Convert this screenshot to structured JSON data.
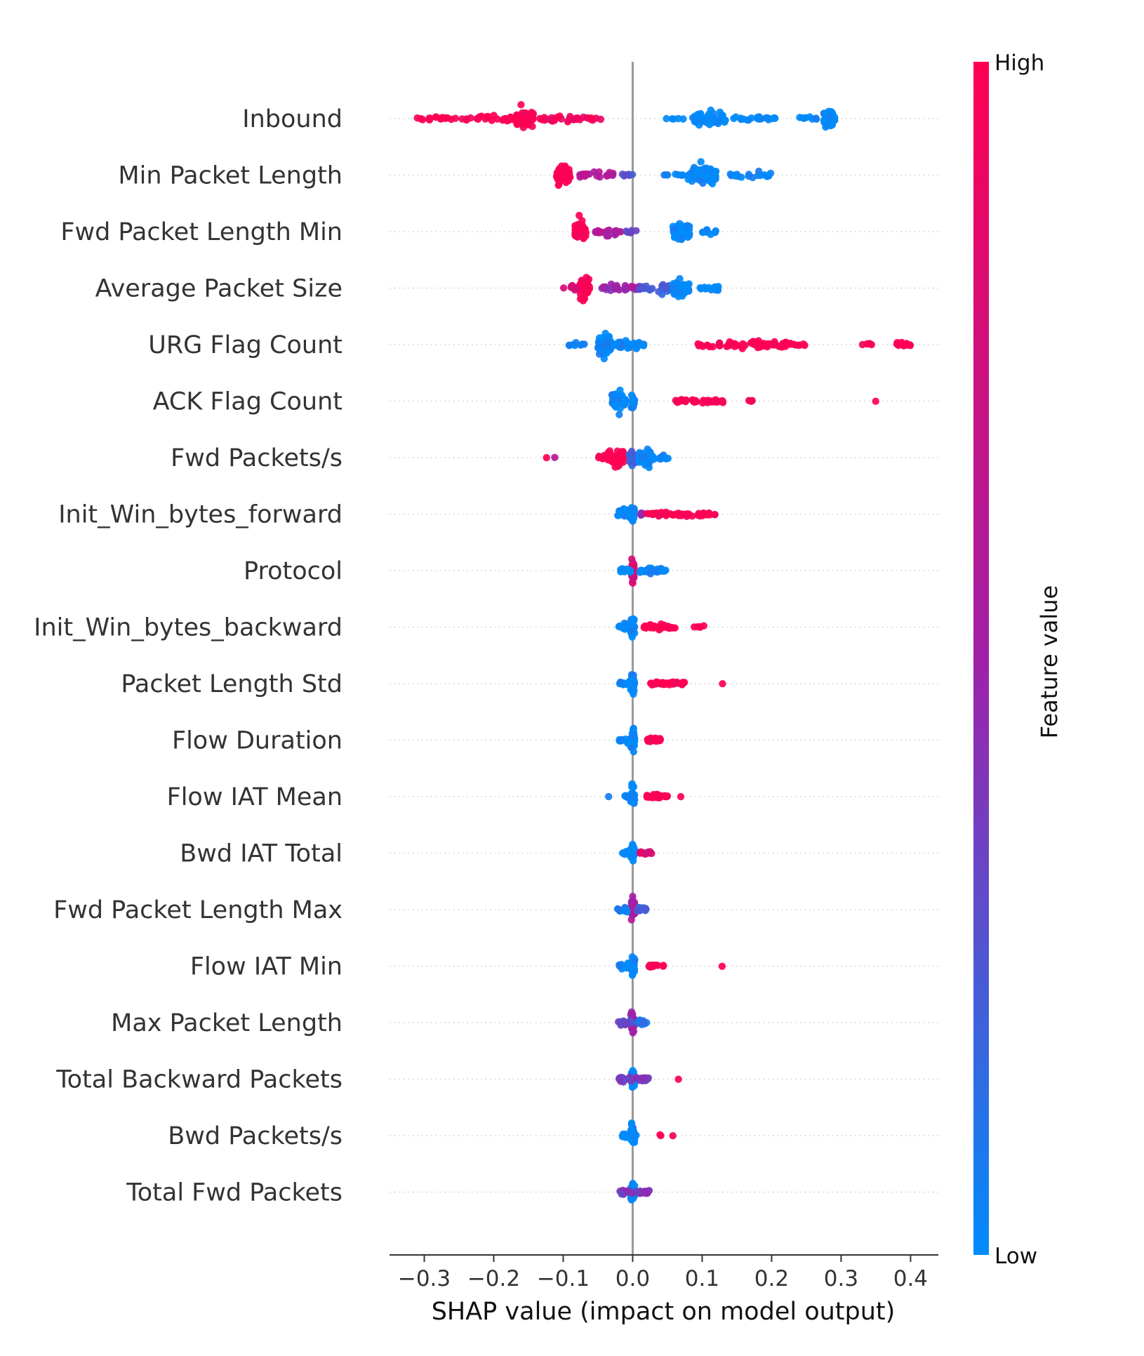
{
  "chart_data": {
    "type": "scatter",
    "subtype": "shap-beeswarm",
    "title": "",
    "xlabel": "SHAP value (impact on model output)",
    "ylabel": "",
    "xlim": [
      -0.35,
      0.44
    ],
    "xticks": [
      -0.3,
      -0.2,
      -0.1,
      0.0,
      0.1,
      0.2,
      0.3,
      0.4
    ],
    "xtick_labels": [
      "−0.3",
      "−0.2",
      "−0.1",
      "0.0",
      "0.1",
      "0.2",
      "0.3",
      "0.4"
    ],
    "grid": "dotted horizontal per feature",
    "colorbar": {
      "title": "Feature value",
      "high_label": "High",
      "low_label": "Low",
      "high_color": "#ff0052",
      "mid_color": "#a020a8",
      "low_color": "#008bfb"
    },
    "zero_line_color": "#999999",
    "features": [
      {
        "name": "Inbound",
        "clusters": [
          {
            "c": -0.155,
            "w": 0.012,
            "s": 0.02,
            "n": 80,
            "v": 1.0
          },
          {
            "c": -0.2,
            "w": 0.04,
            "s": 0.006,
            "n": 30,
            "v": 1.0
          },
          {
            "c": -0.28,
            "w": 0.035,
            "s": 0.004,
            "n": 20,
            "v": 1.0
          },
          {
            "c": -0.09,
            "w": 0.045,
            "s": 0.006,
            "n": 30,
            "v": 0.95
          },
          {
            "c": 0.11,
            "w": 0.025,
            "s": 0.014,
            "n": 50,
            "v": 0.0
          },
          {
            "c": 0.17,
            "w": 0.035,
            "s": 0.004,
            "n": 20,
            "v": 0.0
          },
          {
            "c": 0.06,
            "w": 0.02,
            "s": 0.002,
            "n": 5,
            "v": 0.0
          },
          {
            "c": 0.283,
            "w": 0.008,
            "s": 0.018,
            "n": 45,
            "v": 0.0
          },
          {
            "c": 0.25,
            "w": 0.015,
            "s": 0.004,
            "n": 8,
            "v": 0.0
          }
        ]
      },
      {
        "name": "Min Packet Length",
        "clusters": [
          {
            "c": -0.1,
            "w": 0.01,
            "s": 0.02,
            "n": 70,
            "v": 1.0
          },
          {
            "c": -0.05,
            "w": 0.03,
            "s": 0.006,
            "n": 22,
            "v": 0.6
          },
          {
            "c": -0.015,
            "w": 0.015,
            "s": 0.003,
            "n": 8,
            "v": 0.3
          },
          {
            "c": 0.1,
            "w": 0.02,
            "s": 0.02,
            "n": 65,
            "v": 0.0
          },
          {
            "c": 0.17,
            "w": 0.03,
            "s": 0.006,
            "n": 18,
            "v": 0.0
          },
          {
            "c": 0.06,
            "w": 0.015,
            "s": 0.004,
            "n": 8,
            "v": 0.0
          }
        ]
      },
      {
        "name": "Fwd Packet Length Min",
        "clusters": [
          {
            "c": -0.075,
            "w": 0.008,
            "s": 0.02,
            "n": 65,
            "v": 1.0
          },
          {
            "c": -0.035,
            "w": 0.02,
            "s": 0.006,
            "n": 22,
            "v": 0.6
          },
          {
            "c": 0.0,
            "w": 0.01,
            "s": 0.003,
            "n": 6,
            "v": 0.3
          },
          {
            "c": 0.07,
            "w": 0.012,
            "s": 0.02,
            "n": 60,
            "v": 0.0
          },
          {
            "c": 0.11,
            "w": 0.01,
            "s": 0.006,
            "n": 12,
            "v": 0.0
          }
        ]
      },
      {
        "name": "Average Packet Size",
        "clusters": [
          {
            "c": -0.07,
            "w": 0.008,
            "s": 0.02,
            "n": 65,
            "v": 1.0
          },
          {
            "c": -0.09,
            "w": 0.01,
            "s": 0.005,
            "n": 8,
            "v": 0.85
          },
          {
            "c": -0.02,
            "w": 0.03,
            "s": 0.007,
            "n": 30,
            "v": 0.5
          },
          {
            "c": 0.04,
            "w": 0.03,
            "s": 0.008,
            "n": 30,
            "v": 0.2
          },
          {
            "c": 0.07,
            "w": 0.012,
            "s": 0.02,
            "n": 60,
            "v": 0.0
          },
          {
            "c": 0.11,
            "w": 0.015,
            "s": 0.007,
            "n": 15,
            "v": 0.0
          }
        ]
      },
      {
        "name": "URG Flag Count",
        "clusters": [
          {
            "c": -0.04,
            "w": 0.01,
            "s": 0.02,
            "n": 70,
            "v": 0.0
          },
          {
            "c": -0.01,
            "w": 0.02,
            "s": 0.01,
            "n": 35,
            "v": 0.0
          },
          {
            "c": -0.08,
            "w": 0.015,
            "s": 0.004,
            "n": 8,
            "v": 0.0
          },
          {
            "c": 0.015,
            "w": 0.008,
            "s": 0.004,
            "n": 5,
            "v": 0.0
          },
          {
            "c": 0.17,
            "w": 0.08,
            "s": 0.007,
            "n": 75,
            "v": 1.0
          },
          {
            "c": 0.34,
            "w": 0.01,
            "s": 0.003,
            "n": 5,
            "v": 1.0
          },
          {
            "c": 0.39,
            "w": 0.01,
            "s": 0.005,
            "n": 14,
            "v": 1.0
          }
        ]
      },
      {
        "name": "ACK Flag Count",
        "clusters": [
          {
            "c": -0.02,
            "w": 0.01,
            "s": 0.02,
            "n": 55,
            "v": 0.0
          },
          {
            "c": 0.0,
            "w": 0.003,
            "s": 0.022,
            "n": 15,
            "v": 0.0
          },
          {
            "c": 0.095,
            "w": 0.035,
            "s": 0.005,
            "n": 45,
            "v": 1.0
          },
          {
            "c": 0.17,
            "w": 0.004,
            "s": 0.003,
            "n": 4,
            "v": 1.0
          },
          {
            "c": 0.35,
            "w": 0.001,
            "s": 0.001,
            "n": 1,
            "v": 1.0
          }
        ]
      },
      {
        "name": "Fwd Packets/s",
        "clusters": [
          {
            "c": -0.025,
            "w": 0.012,
            "s": 0.018,
            "n": 55,
            "v": 1.0
          },
          {
            "c": -0.04,
            "w": 0.01,
            "s": 0.006,
            "n": 10,
            "v": 1.0
          },
          {
            "c": 0.0,
            "w": 0.005,
            "s": 0.015,
            "n": 25,
            "v": 0.2
          },
          {
            "c": 0.02,
            "w": 0.012,
            "s": 0.018,
            "n": 55,
            "v": 0.0
          },
          {
            "c": 0.045,
            "w": 0.008,
            "s": 0.005,
            "n": 10,
            "v": 0.0
          },
          {
            "c": -0.125,
            "w": 0.001,
            "s": 0.001,
            "n": 1,
            "v": 1.0
          },
          {
            "c": -0.112,
            "w": 0.001,
            "s": 0.001,
            "n": 1,
            "v": 0.65
          }
        ]
      },
      {
        "name": "Init_Win_bytes_forward",
        "clusters": [
          {
            "c": -0.01,
            "w": 0.012,
            "s": 0.012,
            "n": 35,
            "v": 0.0
          },
          {
            "c": 0.0,
            "w": 0.003,
            "s": 0.022,
            "n": 20,
            "v": 0.0
          },
          {
            "c": 0.015,
            "w": 0.004,
            "s": 0.005,
            "n": 5,
            "v": 0.5
          },
          {
            "c": 0.07,
            "w": 0.05,
            "s": 0.005,
            "n": 55,
            "v": 1.0
          }
        ]
      },
      {
        "name": "Protocol",
        "clusters": [
          {
            "c": 0.0,
            "w": 0.002,
            "s": 0.025,
            "n": 45,
            "v": 0.8
          },
          {
            "c": -0.01,
            "w": 0.008,
            "s": 0.005,
            "n": 15,
            "v": 0.0
          },
          {
            "c": 0.03,
            "w": 0.02,
            "s": 0.005,
            "n": 30,
            "v": 0.0
          }
        ]
      },
      {
        "name": "Init_Win_bytes_backward",
        "clusters": [
          {
            "c": 0.0,
            "w": 0.003,
            "s": 0.022,
            "n": 30,
            "v": 0.0
          },
          {
            "c": -0.01,
            "w": 0.01,
            "s": 0.008,
            "n": 15,
            "v": 0.0
          },
          {
            "c": 0.04,
            "w": 0.025,
            "s": 0.005,
            "n": 35,
            "v": 1.0
          },
          {
            "c": 0.095,
            "w": 0.008,
            "s": 0.003,
            "n": 5,
            "v": 1.0
          }
        ]
      },
      {
        "name": "Packet Length Std",
        "clusters": [
          {
            "c": 0.0,
            "w": 0.003,
            "s": 0.022,
            "n": 30,
            "v": 0.0
          },
          {
            "c": -0.01,
            "w": 0.01,
            "s": 0.008,
            "n": 15,
            "v": 0.0
          },
          {
            "c": 0.05,
            "w": 0.025,
            "s": 0.005,
            "n": 35,
            "v": 1.0
          },
          {
            "c": 0.13,
            "w": 0.001,
            "s": 0.001,
            "n": 1,
            "v": 1.0
          }
        ]
      },
      {
        "name": "Flow Duration",
        "clusters": [
          {
            "c": 0.0,
            "w": 0.003,
            "s": 0.022,
            "n": 30,
            "v": 0.0
          },
          {
            "c": -0.01,
            "w": 0.01,
            "s": 0.007,
            "n": 15,
            "v": 0.0
          },
          {
            "c": 0.03,
            "w": 0.01,
            "s": 0.005,
            "n": 25,
            "v": 1.0
          }
        ]
      },
      {
        "name": "Flow IAT Mean",
        "clusters": [
          {
            "c": 0.0,
            "w": 0.003,
            "s": 0.022,
            "n": 30,
            "v": 0.0
          },
          {
            "c": -0.005,
            "w": 0.008,
            "s": 0.006,
            "n": 12,
            "v": 0.0
          },
          {
            "c": -0.035,
            "w": 0.001,
            "s": 0.001,
            "n": 1,
            "v": 0.0
          },
          {
            "c": 0.035,
            "w": 0.015,
            "s": 0.004,
            "n": 20,
            "v": 1.0
          },
          {
            "c": 0.07,
            "w": 0.001,
            "s": 0.001,
            "n": 1,
            "v": 1.0
          }
        ]
      },
      {
        "name": "Bwd IAT Total",
        "clusters": [
          {
            "c": 0.0,
            "w": 0.003,
            "s": 0.022,
            "n": 30,
            "v": 0.0
          },
          {
            "c": -0.008,
            "w": 0.008,
            "s": 0.006,
            "n": 12,
            "v": 0.0
          },
          {
            "c": 0.02,
            "w": 0.01,
            "s": 0.004,
            "n": 15,
            "v": 0.8
          }
        ]
      },
      {
        "name": "Fwd Packet Length Max",
        "clusters": [
          {
            "c": 0.0,
            "w": 0.003,
            "s": 0.022,
            "n": 35,
            "v": 0.55
          },
          {
            "c": -0.015,
            "w": 0.008,
            "s": 0.006,
            "n": 15,
            "v": 0.1
          },
          {
            "c": 0.012,
            "w": 0.008,
            "s": 0.006,
            "n": 15,
            "v": 0.2
          }
        ]
      },
      {
        "name": "Flow IAT Min",
        "clusters": [
          {
            "c": 0.0,
            "w": 0.003,
            "s": 0.022,
            "n": 30,
            "v": 0.0
          },
          {
            "c": -0.01,
            "w": 0.01,
            "s": 0.006,
            "n": 15,
            "v": 0.0
          },
          {
            "c": 0.03,
            "w": 0.015,
            "s": 0.003,
            "n": 12,
            "v": 1.0
          },
          {
            "c": 0.128,
            "w": 0.001,
            "s": 0.001,
            "n": 1,
            "v": 1.0
          }
        ]
      },
      {
        "name": "Max Packet Length",
        "clusters": [
          {
            "c": 0.0,
            "w": 0.003,
            "s": 0.024,
            "n": 40,
            "v": 0.5
          },
          {
            "c": -0.012,
            "w": 0.01,
            "s": 0.006,
            "n": 15,
            "v": 0.3
          },
          {
            "c": 0.014,
            "w": 0.008,
            "s": 0.006,
            "n": 12,
            "v": 0.1
          }
        ]
      },
      {
        "name": "Total Backward Packets",
        "clusters": [
          {
            "c": 0.0,
            "w": 0.003,
            "s": 0.022,
            "n": 35,
            "v": 0.0
          },
          {
            "c": -0.01,
            "w": 0.01,
            "s": 0.006,
            "n": 15,
            "v": 0.4
          },
          {
            "c": 0.015,
            "w": 0.01,
            "s": 0.006,
            "n": 15,
            "v": 0.4
          },
          {
            "c": 0.065,
            "w": 0.001,
            "s": 0.001,
            "n": 1,
            "v": 1.0
          }
        ]
      },
      {
        "name": "Bwd Packets/s",
        "clusters": [
          {
            "c": 0.0,
            "w": 0.003,
            "s": 0.022,
            "n": 30,
            "v": 0.0
          },
          {
            "c": -0.005,
            "w": 0.012,
            "s": 0.005,
            "n": 15,
            "v": 0.0
          },
          {
            "c": 0.04,
            "w": 0.002,
            "s": 0.002,
            "n": 2,
            "v": 1.0
          },
          {
            "c": 0.058,
            "w": 0.001,
            "s": 0.001,
            "n": 1,
            "v": 1.0
          }
        ]
      },
      {
        "name": "Total Fwd Packets",
        "clusters": [
          {
            "c": 0.0,
            "w": 0.003,
            "s": 0.022,
            "n": 35,
            "v": 0.0
          },
          {
            "c": -0.01,
            "w": 0.01,
            "s": 0.006,
            "n": 15,
            "v": 0.4
          },
          {
            "c": 0.015,
            "w": 0.01,
            "s": 0.006,
            "n": 15,
            "v": 0.4
          }
        ]
      }
    ]
  }
}
